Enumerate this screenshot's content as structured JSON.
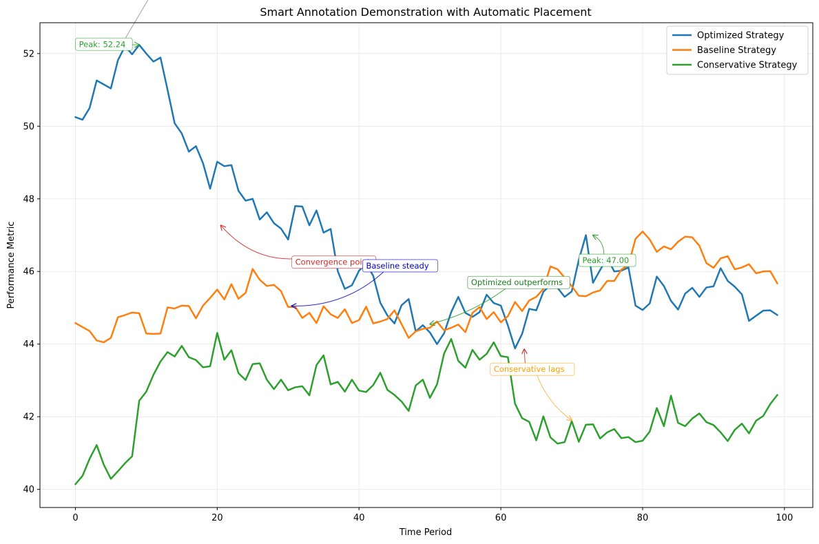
{
  "chart_data": {
    "type": "line",
    "title": "Smart Annotation Demonstration with Automatic Placement",
    "xlabel": "Time Period",
    "ylabel": "Performance Metric",
    "xlim": [
      -5,
      104
    ],
    "ylim": [
      39.5,
      52.85
    ],
    "xticks": [
      0,
      20,
      40,
      60,
      80,
      100
    ],
    "yticks": [
      40,
      42,
      44,
      46,
      48,
      50,
      52
    ],
    "grid": true,
    "legend_position": "top-right",
    "series": [
      {
        "name": "Optimized Strategy",
        "color": "#1f77b4",
        "values": [
          50.25,
          50.18,
          50.5,
          51.26,
          51.15,
          51.04,
          51.82,
          52.2,
          51.98,
          52.24,
          52.0,
          51.78,
          51.89,
          51.0,
          50.08,
          49.8,
          49.3,
          49.45,
          48.98,
          48.28,
          49.02,
          48.9,
          48.93,
          48.22,
          47.95,
          48.0,
          47.43,
          47.63,
          47.33,
          47.18,
          46.88,
          47.8,
          47.79,
          47.27,
          47.68,
          47.07,
          47.17,
          46.01,
          45.52,
          45.62,
          46.02,
          46.22,
          45.88,
          45.14,
          44.79,
          44.57,
          45.07,
          45.24,
          44.35,
          44.52,
          44.32,
          44.0,
          44.3,
          44.88,
          45.3,
          44.86,
          44.75,
          44.88,
          45.36,
          45.13,
          45.06,
          44.51,
          43.88,
          44.28,
          44.97,
          44.93,
          45.44,
          45.63,
          45.55,
          45.3,
          45.45,
          46.32,
          47.0,
          45.69,
          46.04,
          46.37,
          46.0,
          46.02,
          46.11,
          45.06,
          44.94,
          45.12,
          45.86,
          45.6,
          45.19,
          44.95,
          45.39,
          45.55,
          45.3,
          45.56,
          45.59,
          46.09,
          45.74,
          45.58,
          45.37,
          44.64,
          44.78,
          44.92,
          44.93,
          44.8
        ]
      },
      {
        "name": "Baseline Strategy",
        "color": "#ff7f0e",
        "values": [
          44.58,
          44.47,
          44.36,
          44.1,
          44.05,
          44.17,
          44.74,
          44.8,
          44.87,
          44.85,
          44.29,
          44.28,
          44.29,
          45.01,
          44.98,
          45.06,
          45.05,
          44.71,
          45.06,
          45.27,
          45.5,
          45.23,
          45.65,
          45.25,
          45.41,
          46.07,
          45.77,
          45.6,
          45.63,
          45.46,
          45.02,
          45.03,
          44.72,
          44.86,
          44.58,
          45.04,
          44.82,
          44.72,
          44.96,
          44.58,
          44.66,
          45.03,
          44.57,
          44.62,
          44.69,
          44.93,
          44.55,
          44.17,
          44.35,
          44.42,
          44.45,
          44.62,
          44.38,
          44.45,
          44.54,
          44.33,
          44.86,
          45.02,
          44.69,
          44.88,
          44.6,
          44.77,
          45.16,
          44.91,
          45.2,
          45.3,
          45.52,
          46.14,
          46.06,
          45.83,
          45.6,
          45.33,
          45.32,
          45.42,
          45.48,
          45.74,
          45.74,
          46.05,
          46.18,
          46.9,
          47.1,
          46.88,
          46.54,
          46.69,
          46.61,
          46.82,
          46.96,
          46.94,
          46.71,
          46.23,
          46.1,
          46.36,
          46.42,
          46.06,
          46.11,
          46.2,
          45.95,
          46.0,
          46.01,
          45.67
        ]
      },
      {
        "name": "Conservative Strategy",
        "color": "#2ca02c",
        "values": [
          40.14,
          40.37,
          40.84,
          41.22,
          40.68,
          40.29,
          40.5,
          40.72,
          40.91,
          42.44,
          42.69,
          43.15,
          43.52,
          43.78,
          43.66,
          43.95,
          43.64,
          43.56,
          43.36,
          43.39,
          44.31,
          43.57,
          43.83,
          43.2,
          43.01,
          43.45,
          43.47,
          43.02,
          42.76,
          43.02,
          42.73,
          42.81,
          42.84,
          42.59,
          43.42,
          43.69,
          42.89,
          42.96,
          42.69,
          43.02,
          42.72,
          42.68,
          42.87,
          43.21,
          42.74,
          42.6,
          42.42,
          42.16,
          42.86,
          43.02,
          42.52,
          42.89,
          43.74,
          44.14,
          43.54,
          43.35,
          43.84,
          43.57,
          43.73,
          44.05,
          43.67,
          43.64,
          42.36,
          41.96,
          41.86,
          41.35,
          42.01,
          41.43,
          41.26,
          41.3,
          41.88,
          41.31,
          41.78,
          41.79,
          41.4,
          41.57,
          41.66,
          41.41,
          41.44,
          41.3,
          41.34,
          41.59,
          42.24,
          41.74,
          42.58,
          41.83,
          41.74,
          41.95,
          42.09,
          41.85,
          41.77,
          41.57,
          41.33,
          41.64,
          41.81,
          41.54,
          41.89,
          42.02,
          42.35,
          42.6
        ]
      }
    ],
    "annotations": [
      {
        "label": "Peak: 52.24",
        "text_color": "#2ca02c",
        "arrow_color": "#2ca02c",
        "point": [
          9,
          52.24
        ],
        "text_at": [
          0.5,
          52.2
        ],
        "curve": 0.0,
        "line_to": [
          11.5,
          53.9
        ],
        "line_color": "#a0a0a0"
      },
      {
        "label": "Convergence point",
        "text_color": "#d62728",
        "arrow_color": "#d62728",
        "point": [
          20.5,
          47.27
        ],
        "text_at": [
          31,
          46.2
        ],
        "curve": -0.3,
        "line_to": null,
        "line_color": null
      },
      {
        "label": "Baseline steady",
        "text_color": "#0000cc",
        "arrow_color": "#0000cc",
        "point": [
          30.5,
          45.05
        ],
        "text_at": [
          41,
          46.1
        ],
        "curve": -0.2,
        "line_to": null,
        "line_color": null
      },
      {
        "label": "Optimized outperforms",
        "text_color": "#1a7f1a",
        "arrow_color": "#2ca02c",
        "point": [
          50,
          44.55
        ],
        "text_at": [
          55.8,
          45.64
        ],
        "curve": -0.1,
        "line_to": null,
        "line_color": null
      },
      {
        "label": "Peak: 47.00",
        "text_color": "#2ca02c",
        "arrow_color": "#2ca02c",
        "point": [
          73,
          47.0
        ],
        "text_at": [
          71.5,
          46.25
        ],
        "curve": 0.3,
        "line_to": null,
        "line_color": null
      },
      {
        "label": "Conservative lags",
        "text_color": "#ff9f00",
        "arrow_color": "#ffaa33",
        "point": [
          70,
          41.9
        ],
        "text_at": [
          59,
          43.25
        ],
        "curve": 0.15,
        "line_to": null,
        "line_color": null
      },
      {
        "label": "",
        "text_color": "#d62728",
        "arrow_color": "#d62728",
        "point": [
          63.3,
          43.86
        ],
        "text_at": [
          63.5,
          43.25
        ],
        "curve": 0.0,
        "line_to": null,
        "line_color": null
      }
    ]
  }
}
